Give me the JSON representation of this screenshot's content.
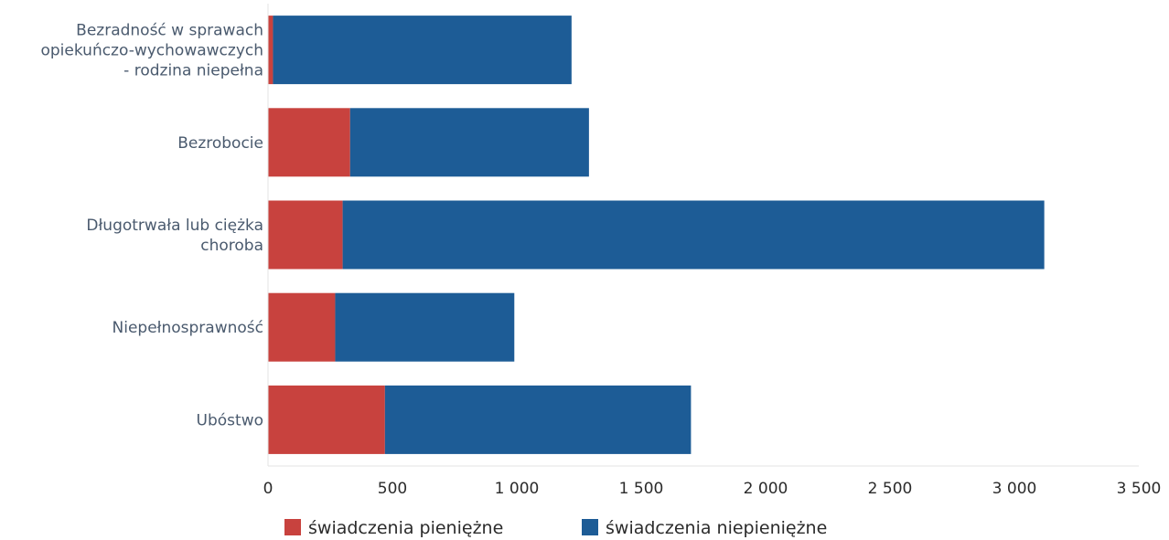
{
  "chart_data": {
    "type": "bar",
    "orientation": "horizontal",
    "stacked": true,
    "categories": [
      [
        "Bezradność w sprawach",
        "opiekuńczo-wychowawczych",
        "- rodzina niepełna"
      ],
      [
        "Bezrobocie"
      ],
      [
        "Długotrwała lub ciężka",
        "choroba"
      ],
      [
        "Niepełnosprawność"
      ],
      [
        "Ubóstwo"
      ]
    ],
    "series": [
      {
        "name": "świadczenia pieniężne",
        "color": "#c8423e",
        "values": [
          20,
          330,
          300,
          270,
          470
        ]
      },
      {
        "name": "świadczenia niepieniężne",
        "color": "#1d5c96",
        "values": [
          1200,
          960,
          2820,
          720,
          1230
        ]
      }
    ],
    "xlim": [
      0,
      3500
    ],
    "xticks": [
      0,
      500,
      1000,
      1500,
      2000,
      2500,
      3000,
      3500
    ],
    "xtick_labels": [
      "0",
      "500",
      "1 000",
      "1 500",
      "2 000",
      "2 500",
      "3 000",
      "3 500"
    ],
    "grid": false,
    "legend_position": "bottom",
    "title": "",
    "xlabel": "",
    "ylabel": ""
  }
}
